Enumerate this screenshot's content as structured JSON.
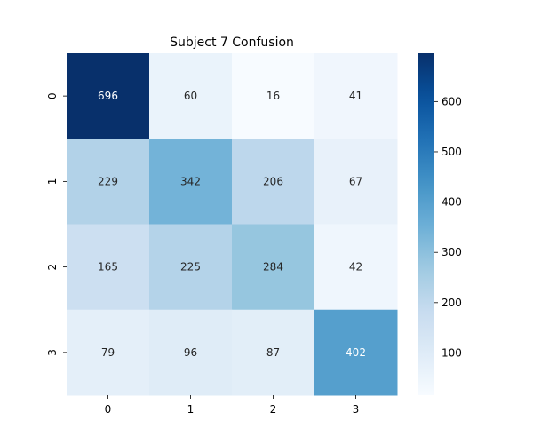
{
  "chart_data": {
    "type": "heatmap",
    "title": "Subject 7 Confusion",
    "xlabel": "",
    "ylabel": "",
    "x_categories": [
      "0",
      "1",
      "2",
      "3"
    ],
    "y_categories": [
      "0",
      "1",
      "2",
      "3"
    ],
    "values": [
      [
        696,
        60,
        16,
        41
      ],
      [
        229,
        342,
        206,
        67
      ],
      [
        165,
        225,
        284,
        42
      ],
      [
        79,
        96,
        87,
        402
      ]
    ],
    "colormap": "Blues",
    "color_range": [
      16,
      696
    ],
    "colorbar_ticks": [
      100,
      200,
      300,
      400,
      500,
      600
    ]
  }
}
